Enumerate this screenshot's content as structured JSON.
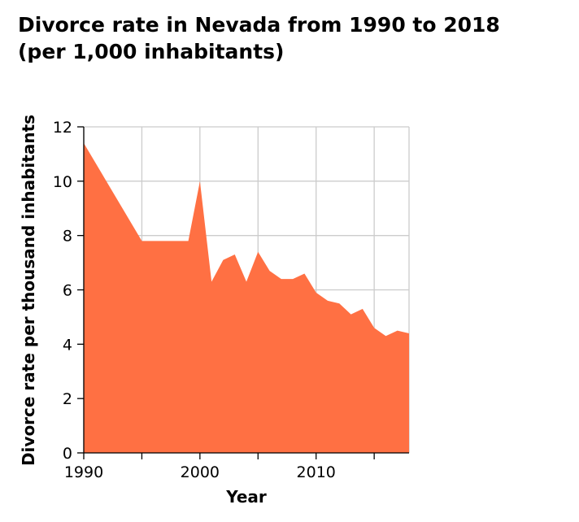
{
  "chart_data": {
    "type": "area",
    "title_line1": "Divorce rate in Nevada from 1990 to 2018",
    "title_line2": "(per 1,000 inhabitants)",
    "xlabel": "Year",
    "ylabel": "Divorce rate per thousand inhabitants",
    "xlim": [
      1990,
      2018
    ],
    "ylim": [
      0,
      12
    ],
    "x_ticks": [
      1990,
      1995,
      2000,
      2005,
      2010,
      2015
    ],
    "x_tick_labels": [
      "1990",
      "",
      "2000",
      "",
      "2010",
      ""
    ],
    "y_ticks": [
      0,
      2,
      4,
      6,
      8,
      10,
      12
    ],
    "y_tick_labels": [
      "0",
      "2",
      "4",
      "6",
      "8",
      "10",
      "12"
    ],
    "grid": true,
    "fill_color": "#ff7043",
    "series": [
      {
        "x": [
          1990,
          1995,
          1999,
          2000,
          2001,
          2002,
          2003,
          2004,
          2005,
          2006,
          2007,
          2008,
          2009,
          2010,
          2011,
          2012,
          2013,
          2014,
          2015,
          2016,
          2017,
          2018
        ],
        "values": [
          11.4,
          7.8,
          7.8,
          10.0,
          6.3,
          7.1,
          7.3,
          6.3,
          7.4,
          6.7,
          6.4,
          6.4,
          6.6,
          5.9,
          5.6,
          5.5,
          5.1,
          5.3,
          4.6,
          4.3,
          4.5,
          4.4
        ]
      }
    ]
  }
}
